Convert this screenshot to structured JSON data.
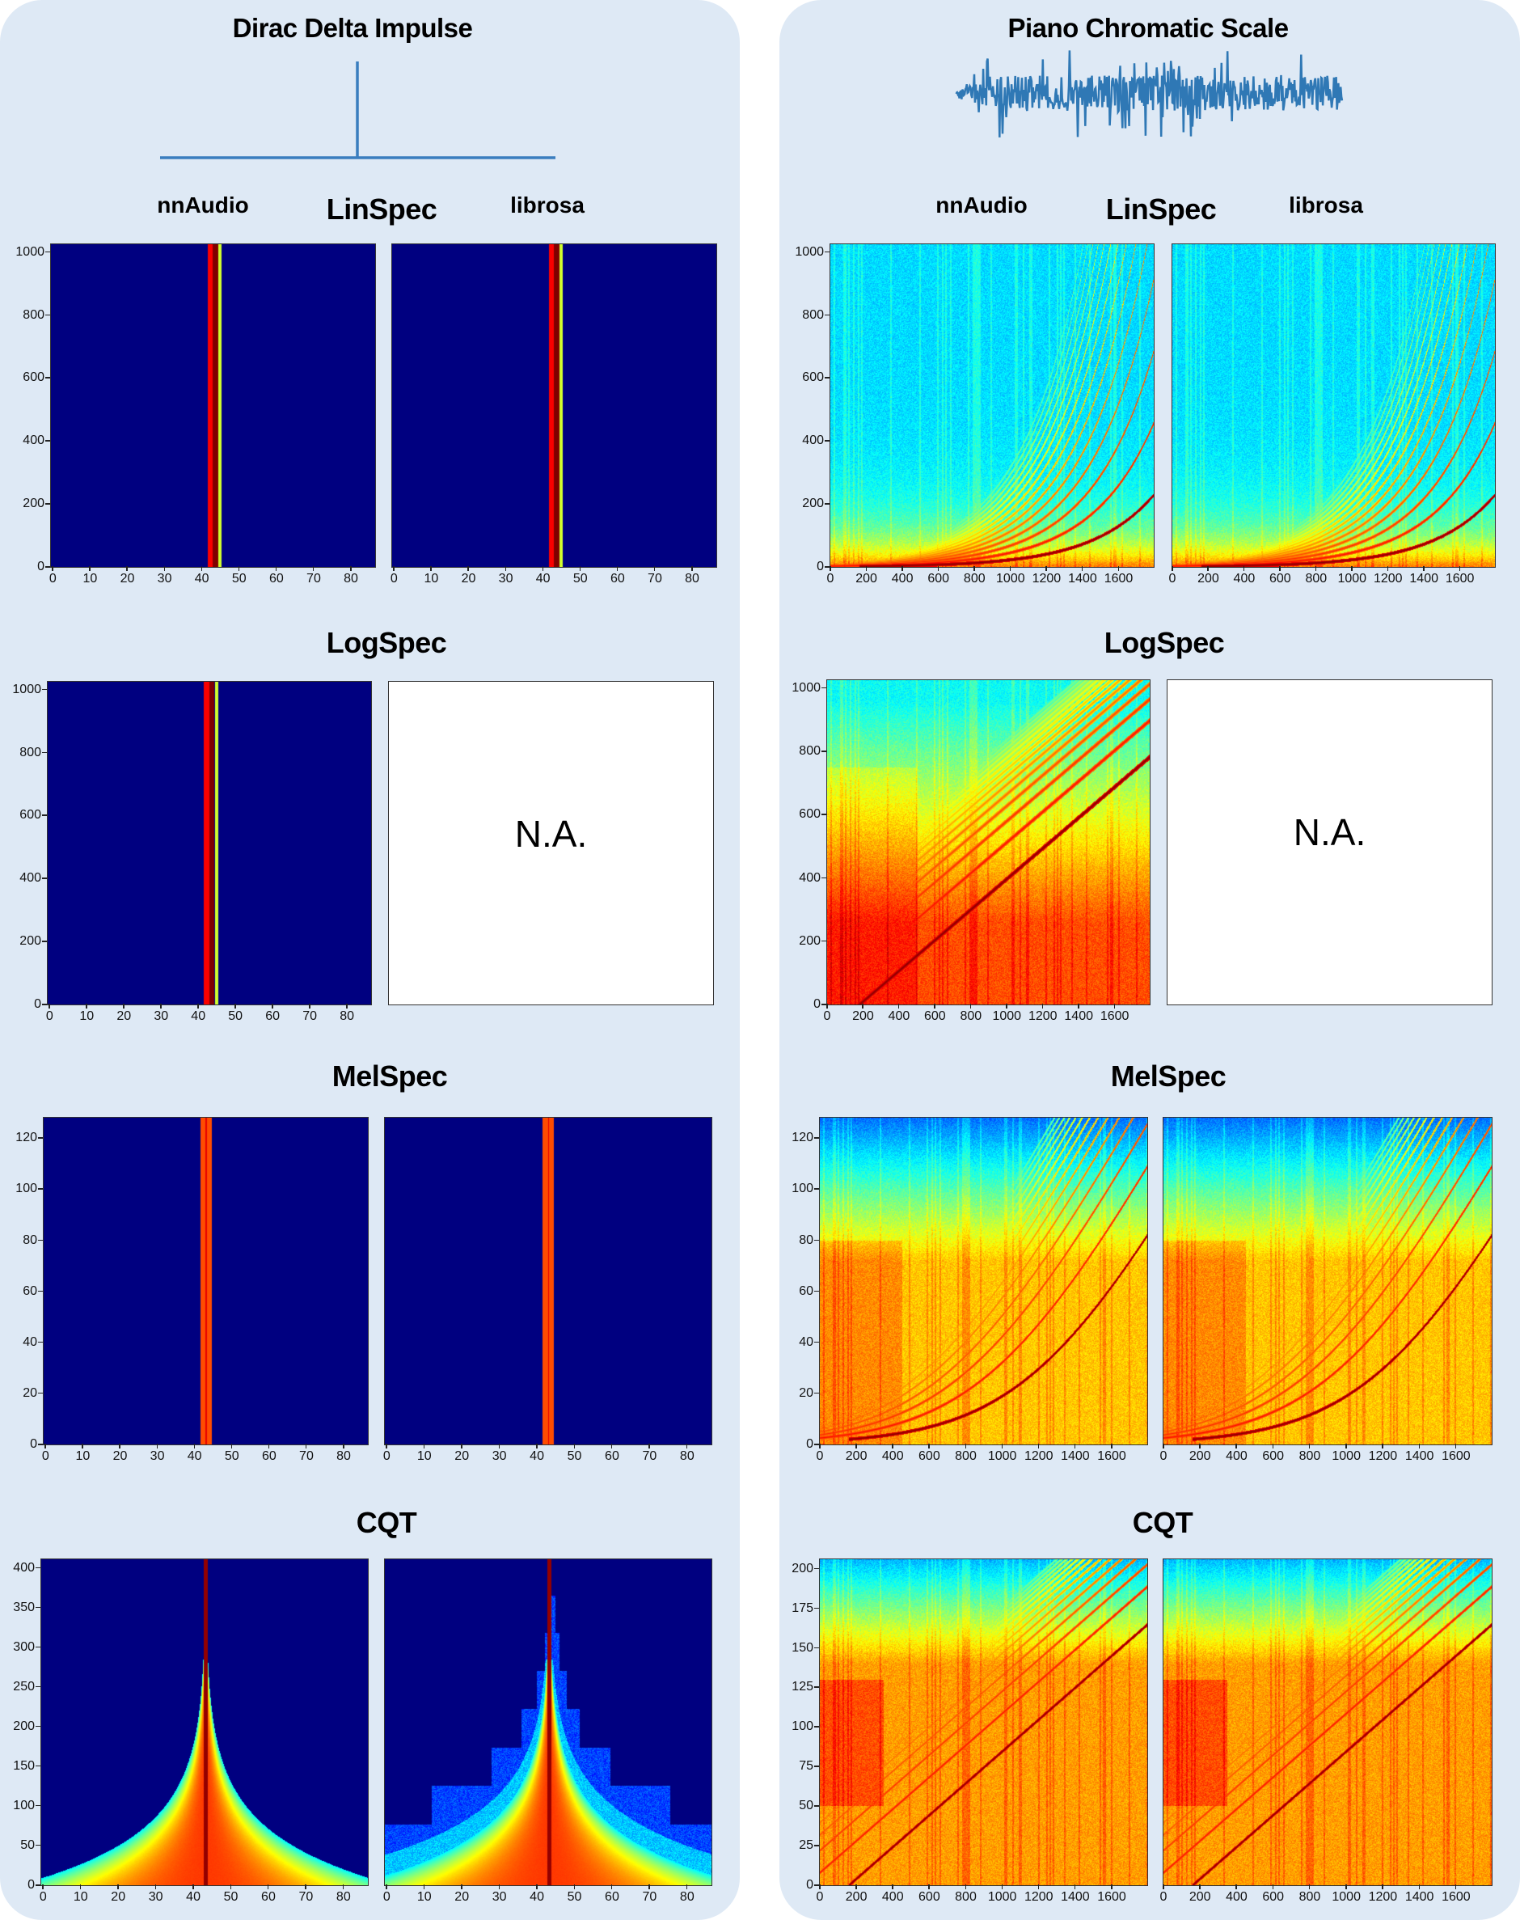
{
  "left": {
    "title": "Dirac Delta Impulse",
    "signal_icon": "impulse-waveform",
    "col_labels": {
      "nnaudio": "nnAudio",
      "librosa": "librosa"
    },
    "sections": {
      "linspec": "LinSpec",
      "logspec": "LogSpec",
      "melspec": "MelSpec",
      "cqt": "CQT"
    },
    "na": "N.A."
  },
  "right": {
    "title": "Piano Chromatic Scale",
    "signal_icon": "audio-waveform",
    "col_labels": {
      "nnaudio": "nnAudio",
      "librosa": "librosa"
    },
    "sections": {
      "linspec": "LinSpec",
      "logspec": "LogSpec",
      "melspec": "MelSpec",
      "cqt": "CQT"
    },
    "na": "N.A."
  },
  "colors": {
    "background": "#dee9f5",
    "waveform": "#2f78b5",
    "colormap": "jet"
  },
  "chart_data": [
    {
      "type": "heatmap",
      "signal": "Dirac Delta Impulse",
      "transform": "LinSpec",
      "library": "nnAudio",
      "colormap": "jet",
      "xlim": [
        -0.5,
        86.5
      ],
      "ylim": [
        0,
        1025
      ],
      "xticks": [
        0,
        10,
        20,
        30,
        40,
        50,
        60,
        70,
        80
      ],
      "yticks": [
        0,
        200,
        400,
        600,
        800,
        1000
      ],
      "peak_frames": [
        42,
        45
      ]
    },
    {
      "type": "heatmap",
      "signal": "Dirac Delta Impulse",
      "transform": "LinSpec",
      "library": "librosa",
      "colormap": "jet",
      "xlim": [
        -0.5,
        86.5
      ],
      "ylim": [
        0,
        1025
      ],
      "xticks": [
        0,
        10,
        20,
        30,
        40,
        50,
        60,
        70,
        80
      ],
      "peak_frames": [
        42,
        45
      ]
    },
    {
      "type": "heatmap",
      "signal": "Dirac Delta Impulse",
      "transform": "LogSpec",
      "library": "nnAudio",
      "colormap": "jet",
      "xlim": [
        -0.5,
        86.5
      ],
      "ylim": [
        0,
        1025
      ],
      "xticks": [
        0,
        10,
        20,
        30,
        40,
        50,
        60,
        70,
        80
      ],
      "yticks": [
        0,
        200,
        400,
        600,
        800,
        1000
      ],
      "peak_frames": [
        42,
        45
      ]
    },
    {
      "type": "heatmap",
      "signal": "Dirac Delta Impulse",
      "transform": "MelSpec",
      "library": "nnAudio",
      "colormap": "jet",
      "xlim": [
        -0.5,
        86.5
      ],
      "ylim": [
        0,
        128
      ],
      "xticks": [
        0,
        10,
        20,
        30,
        40,
        50,
        60,
        70,
        80
      ],
      "yticks": [
        0,
        20,
        40,
        60,
        80,
        100,
        120
      ],
      "peak_frames": [
        42,
        44
      ]
    },
    {
      "type": "heatmap",
      "signal": "Dirac Delta Impulse",
      "transform": "MelSpec",
      "library": "librosa",
      "colormap": "jet",
      "xlim": [
        -0.5,
        86.5
      ],
      "ylim": [
        0,
        128
      ],
      "xticks": [
        0,
        10,
        20,
        30,
        40,
        50,
        60,
        70,
        80
      ],
      "peak_frames": [
        42,
        44
      ]
    },
    {
      "type": "heatmap",
      "signal": "Dirac Delta Impulse",
      "transform": "CQT",
      "library": "nnAudio",
      "colormap": "jet",
      "xlim": [
        -0.5,
        86.5
      ],
      "ylim": [
        0,
        411
      ],
      "xticks": [
        0,
        10,
        20,
        30,
        40,
        50,
        60,
        70,
        80
      ],
      "yticks": [
        0,
        50,
        100,
        150,
        200,
        250,
        300,
        350,
        400
      ],
      "peak_frames": [
        43
      ]
    },
    {
      "type": "heatmap",
      "signal": "Dirac Delta Impulse",
      "transform": "CQT",
      "library": "librosa",
      "colormap": "jet",
      "xlim": [
        -0.5,
        86.5
      ],
      "ylim": [
        0,
        411
      ],
      "xticks": [
        0,
        10,
        20,
        30,
        40,
        50,
        60,
        70,
        80
      ],
      "peak_frames": [
        43
      ]
    },
    {
      "type": "heatmap",
      "signal": "Piano Chromatic Scale",
      "transform": "LinSpec",
      "library": "nnAudio",
      "colormap": "jet",
      "xlim": [
        0,
        1795
      ],
      "ylim": [
        0,
        1025
      ],
      "xticks": [
        0,
        200,
        400,
        600,
        800,
        1000,
        1200,
        1400,
        1600
      ],
      "yticks": [
        0,
        200,
        400,
        600,
        800,
        1000
      ]
    },
    {
      "type": "heatmap",
      "signal": "Piano Chromatic Scale",
      "transform": "LinSpec",
      "library": "librosa",
      "colormap": "jet",
      "xlim": [
        0,
        1795
      ],
      "ylim": [
        0,
        1025
      ],
      "xticks": [
        0,
        200,
        400,
        600,
        800,
        1000,
        1200,
        1400,
        1600
      ]
    },
    {
      "type": "heatmap",
      "signal": "Piano Chromatic Scale",
      "transform": "LogSpec",
      "library": "nnAudio",
      "colormap": "jet",
      "xlim": [
        0,
        1795
      ],
      "ylim": [
        0,
        1025
      ],
      "xticks": [
        0,
        200,
        400,
        600,
        800,
        1000,
        1200,
        1400,
        1600
      ],
      "yticks": [
        0,
        200,
        400,
        600,
        800,
        1000
      ]
    },
    {
      "type": "heatmap",
      "signal": "Piano Chromatic Scale",
      "transform": "MelSpec",
      "library": "nnAudio",
      "colormap": "jet",
      "xlim": [
        0,
        1795
      ],
      "ylim": [
        0,
        128
      ],
      "xticks": [
        0,
        200,
        400,
        600,
        800,
        1000,
        1200,
        1400,
        1600
      ],
      "yticks": [
        0,
        20,
        40,
        60,
        80,
        100,
        120
      ]
    },
    {
      "type": "heatmap",
      "signal": "Piano Chromatic Scale",
      "transform": "MelSpec",
      "library": "librosa",
      "colormap": "jet",
      "xlim": [
        0,
        1795
      ],
      "ylim": [
        0,
        128
      ],
      "xticks": [
        0,
        200,
        400,
        600,
        800,
        1000,
        1200,
        1400,
        1600
      ]
    },
    {
      "type": "heatmap",
      "signal": "Piano Chromatic Scale",
      "transform": "CQT",
      "library": "nnAudio",
      "colormap": "jet",
      "xlim": [
        0,
        1795
      ],
      "ylim": [
        0,
        206
      ],
      "xticks": [
        0,
        200,
        400,
        600,
        800,
        1000,
        1200,
        1400,
        1600
      ],
      "yticks": [
        0,
        25,
        50,
        75,
        100,
        125,
        150,
        175,
        200
      ]
    },
    {
      "type": "heatmap",
      "signal": "Piano Chromatic Scale",
      "transform": "CQT",
      "library": "librosa",
      "colormap": "jet",
      "xlim": [
        0,
        1795
      ],
      "ylim": [
        0,
        206
      ],
      "xticks": [
        0,
        200,
        400,
        600,
        800,
        1000,
        1200,
        1400,
        1600
      ]
    }
  ]
}
